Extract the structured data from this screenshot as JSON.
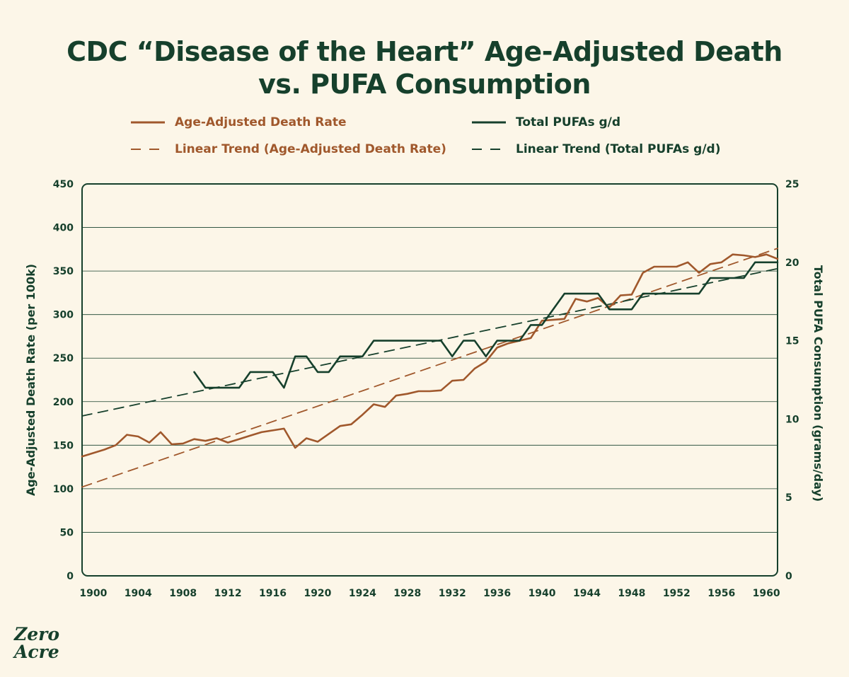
{
  "title_lines": [
    "CDC “Disease of the Heart” Age-Adjusted Death",
    "vs. PUFA Consumption"
  ],
  "logo": {
    "line1": "Zero",
    "line2": "Acre"
  },
  "colors": {
    "rust": "#a0582c",
    "green": "#16402c",
    "background": "#fcf6e8",
    "grid": "#16402c"
  },
  "chart_data": {
    "type": "line",
    "title": "CDC “Disease of the Heart” Age-Adjusted Death vs. PUFA Consumption",
    "xlabel": "",
    "ylabel": "Age-Adjusted Death Rate (per 100k)",
    "y2label": "Total PUFA Consumption (grams/day)",
    "xlim": [
      1899,
      1961
    ],
    "ylim": [
      0,
      450
    ],
    "y2lim": [
      0,
      25
    ],
    "xticks": [
      1900,
      1904,
      1908,
      1912,
      1916,
      1920,
      1924,
      1928,
      1932,
      1936,
      1940,
      1944,
      1948,
      1952,
      1956,
      1960
    ],
    "yticks": [
      0,
      50,
      100,
      150,
      200,
      250,
      300,
      350,
      400,
      450
    ],
    "y2ticks": [
      0,
      5,
      10,
      15,
      20,
      25
    ],
    "grid": true,
    "legend_position": "top",
    "series": [
      {
        "name": "Age-Adjusted Death Rate",
        "axis": "left",
        "style": "solid",
        "color": "#a0582c",
        "x": [
          1899,
          1900,
          1901,
          1902,
          1903,
          1904,
          1905,
          1906,
          1907,
          1908,
          1909,
          1910,
          1911,
          1912,
          1913,
          1914,
          1915,
          1916,
          1917,
          1918,
          1919,
          1920,
          1921,
          1922,
          1923,
          1924,
          1925,
          1926,
          1927,
          1928,
          1929,
          1930,
          1931,
          1932,
          1933,
          1934,
          1935,
          1936,
          1937,
          1938,
          1939,
          1940,
          1941,
          1942,
          1943,
          1944,
          1945,
          1946,
          1947,
          1948,
          1949,
          1950,
          1951,
          1952,
          1953,
          1954,
          1955,
          1956,
          1957,
          1958,
          1959,
          1960,
          1961
        ],
        "values": [
          137,
          141,
          145,
          150,
          162,
          160,
          153,
          165,
          151,
          152,
          157,
          155,
          158,
          153,
          157,
          161,
          165,
          167,
          169,
          147,
          158,
          154,
          163,
          172,
          174,
          185,
          197,
          194,
          207,
          209,
          212,
          212,
          213,
          224,
          225,
          238,
          246,
          262,
          267,
          270,
          273,
          293,
          294,
          295,
          318,
          315,
          319,
          308,
          322,
          323,
          348,
          355,
          355,
          355,
          360,
          348,
          358,
          360,
          369,
          368,
          366,
          369,
          364
        ]
      },
      {
        "name": "Total PUFAs g/d",
        "axis": "right",
        "style": "solid",
        "color": "#16402c",
        "x": [
          1909,
          1910,
          1911,
          1912,
          1913,
          1914,
          1915,
          1916,
          1917,
          1918,
          1919,
          1920,
          1921,
          1922,
          1923,
          1924,
          1925,
          1926,
          1927,
          1928,
          1929,
          1930,
          1931,
          1932,
          1933,
          1934,
          1935,
          1936,
          1937,
          1938,
          1939,
          1940,
          1941,
          1942,
          1943,
          1944,
          1945,
          1946,
          1947,
          1948,
          1949,
          1950,
          1951,
          1952,
          1953,
          1954,
          1955,
          1956,
          1957,
          1958,
          1959,
          1960,
          1961
        ],
        "values": [
          13,
          12,
          12,
          12,
          12,
          13,
          13,
          13,
          12,
          14,
          14,
          13,
          13,
          14,
          14,
          14,
          15,
          15,
          15,
          15,
          15,
          15,
          15,
          14,
          15,
          15,
          14,
          15,
          15,
          15,
          16,
          16,
          17,
          18,
          18,
          18,
          18,
          17,
          17,
          17,
          18,
          18,
          18,
          18,
          18,
          18,
          19,
          19,
          19,
          19,
          20,
          20,
          20
        ]
      },
      {
        "name": "Linear Trend (Age-Adjusted Death Rate)",
        "axis": "left",
        "style": "dashed",
        "color": "#a0582c",
        "x": [
          1899,
          1961
        ],
        "values": [
          102,
          376
        ]
      },
      {
        "name": "Linear Trend (Total PUFAs g/d)",
        "axis": "right",
        "style": "dashed",
        "color": "#16402c",
        "x": [
          1899,
          1961
        ],
        "values": [
          10.2,
          19.6
        ]
      }
    ]
  }
}
